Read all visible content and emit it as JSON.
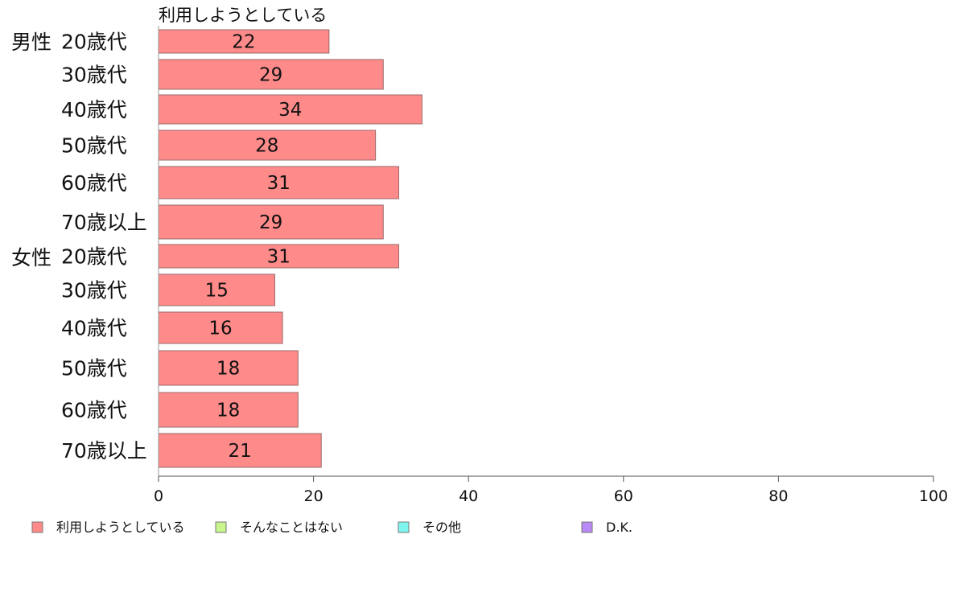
{
  "chart_data": {
    "type": "bar",
    "orientation": "horizontal",
    "series_title": "利用しようとしている",
    "group_labels": [
      "男性",
      "女性"
    ],
    "category_labels": [
      "20歳代",
      "30歳代",
      "40歳代",
      "50歳代",
      "60歳代",
      "70歳以上",
      "20歳代",
      "30歳代",
      "40歳代",
      "50歳代",
      "60歳代",
      "70歳以上"
    ],
    "values": [
      22,
      29,
      34,
      28,
      31,
      29,
      31,
      15,
      16,
      18,
      18,
      21
    ],
    "value_labels": [
      "22",
      "29",
      "34",
      "28",
      "31",
      "29",
      "31",
      "15",
      "16",
      "18",
      "18",
      "21"
    ],
    "xlim": [
      0,
      100
    ],
    "xticks": [
      "0",
      "20",
      "40",
      "60",
      "80",
      "100"
    ],
    "grid": false,
    "legend_position": "bottom",
    "legend": [
      {
        "label": "利用しようとしている",
        "color": "#ff8a8a"
      },
      {
        "label": "そんなことはない",
        "color": "#c8f58c"
      },
      {
        "label": "その他",
        "color": "#7ff5ef"
      },
      {
        "label": "D.K.",
        "color": "#b98af5"
      }
    ],
    "bar_color": "#ff8a8a"
  }
}
